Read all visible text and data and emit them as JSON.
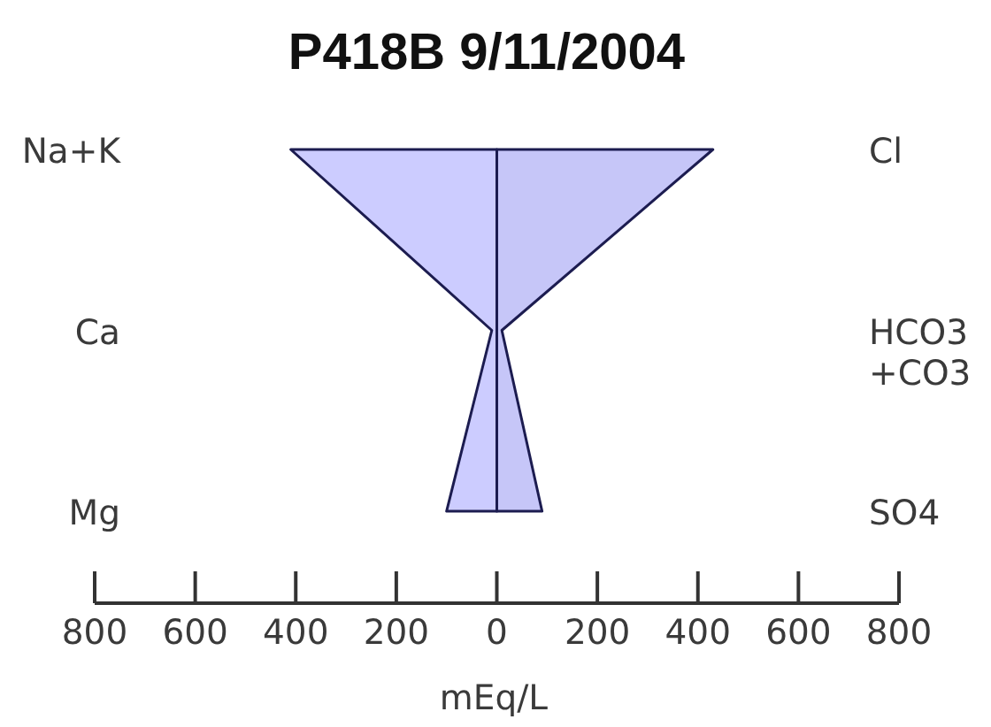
{
  "chart_data": {
    "type": "area",
    "orientation": "horizontal",
    "title": "P418B 9/11/2004",
    "xlabel": "mEq/L",
    "categories": [
      "Na+K",
      "Ca",
      "Mg"
    ],
    "y2_categories": [
      "Cl",
      "HCO3\n+CO3",
      "SO4"
    ],
    "series": [
      {
        "color": "#ccccff",
        "values": [
          -410,
          -10,
          -100
        ]
      },
      {
        "color": "#c6c6f8",
        "values": [
          430,
          10,
          90
        ]
      }
    ],
    "xlim": [
      -800,
      800
    ],
    "xticks": [
      {
        "value": -800,
        "label": "800"
      },
      {
        "value": -600,
        "label": "600"
      },
      {
        "value": -400,
        "label": "400"
      },
      {
        "value": -200,
        "label": "200"
      },
      0,
      200,
      400,
      600,
      800
    ]
  }
}
